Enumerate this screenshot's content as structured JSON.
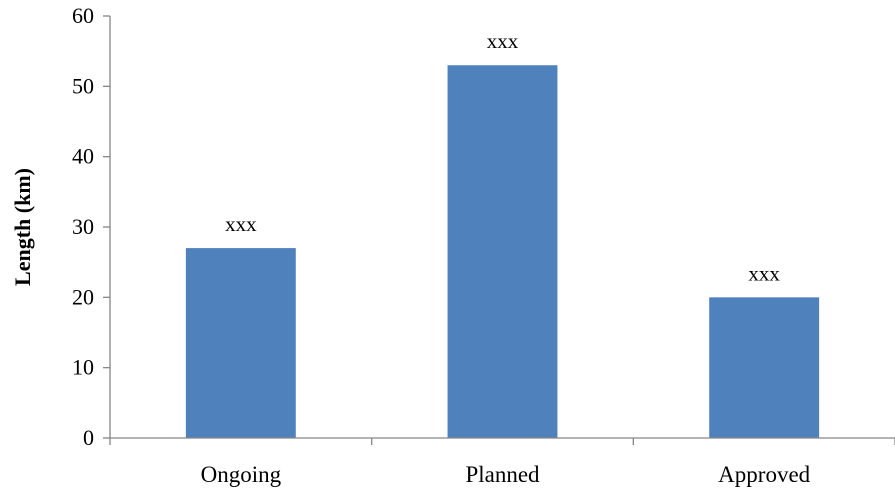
{
  "chart_data": {
    "type": "bar",
    "categories": [
      "Ongoing",
      "Planned",
      "Approved"
    ],
    "values": [
      27,
      53,
      20
    ],
    "data_labels": [
      "xxx",
      "xxx",
      "xxx"
    ],
    "title": "",
    "xlabel": "",
    "ylabel": "Length (km)",
    "ylim": [
      0,
      60
    ],
    "yticks": [
      0,
      10,
      20,
      30,
      40,
      50,
      60
    ],
    "grid": false,
    "legend": "none",
    "bar_color": "#4F81BD"
  }
}
